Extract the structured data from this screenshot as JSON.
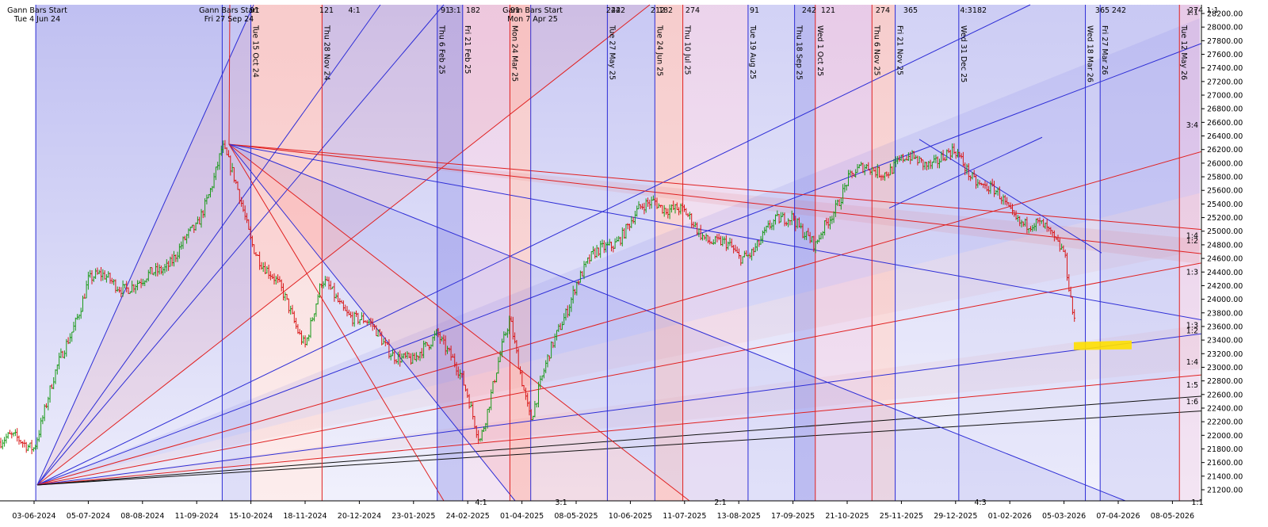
{
  "chart_data": {
    "type": "line",
    "price_axis": {
      "min": 21100,
      "max": 28300,
      "ticks": [
        21200,
        21400,
        21600,
        21800,
        22000,
        22200,
        22400,
        22600,
        22800,
        23000,
        23200,
        23400,
        23600,
        23800,
        24000,
        24200,
        24400,
        24600,
        24800,
        25000,
        25200,
        25400,
        25600,
        25800,
        26000,
        26200,
        26400,
        26600,
        26800,
        27000,
        27200,
        27400,
        27600,
        27800,
        28000,
        28200
      ]
    },
    "date_axis": {
      "labels": [
        "03-06-2024",
        "05-07-2024",
        "08-08-2024",
        "11-09-2024",
        "15-10-2024",
        "18-11-2024",
        "20-12-2024",
        "23-01-2025",
        "24-02-2025",
        "01-04-2025",
        "08-05-2025",
        "10-06-2025",
        "11-07-2025",
        "13-08-2025",
        "17-09-2025",
        "21-10-2025",
        "25-11-2025",
        "29-12-2025",
        "01-02-2026",
        "05-03-2026",
        "07-04-2026",
        "08-05-2026"
      ]
    },
    "gann_starts": [
      {
        "title": "Gann Bars Start",
        "date": "Tue 4 Jun 24"
      },
      {
        "title": "Gann Bars Start",
        "date": "Fri 27 Sep 24"
      },
      {
        "title": "Gann Bars Start",
        "date": "Mon 7 Apr 25"
      }
    ],
    "vertical_lines": [
      {
        "date": "Tue 4 Jun 24",
        "color": "#2d2dd6"
      },
      {
        "date": "Fri 27 Sep 24",
        "color": "#2d2dd6"
      },
      {
        "date": "Tue 15 Oct 24",
        "color": "#2d2dd6"
      },
      {
        "date": "Thu 28 Nov 24",
        "color": "#e02020"
      },
      {
        "date": "Thu 6 Feb 25",
        "color": "#2d2dd6"
      },
      {
        "date": "Fri 21 Feb 25",
        "color": "#2d2dd6"
      },
      {
        "date": "Mon 24 Mar 25",
        "color": "#e02020"
      },
      {
        "date": "Mon 7 Apr 25",
        "color": "#2d2dd6"
      },
      {
        "date": "Tue 27 May 25",
        "color": "#2d2dd6"
      },
      {
        "date": "Tue 24 Jun 25",
        "color": "#2d2dd6"
      },
      {
        "date": "Thu 10 Jul 25",
        "color": "#e02020"
      },
      {
        "date": "Tue 19 Aug 25",
        "color": "#2d2dd6"
      },
      {
        "date": "Thu 18 Sep 25",
        "color": "#2d2dd6"
      },
      {
        "date": "Wed 1 Oct 25",
        "color": "#e02020"
      },
      {
        "date": "Thu 6 Nov 25",
        "color": "#e02020"
      },
      {
        "date": "Fri 21 Nov 25",
        "color": "#2d2dd6"
      },
      {
        "date": "Wed 31 Dec 25",
        "color": "#2d2dd6"
      },
      {
        "date": "Wed 18 Mar 26",
        "color": "#2d2dd6"
      },
      {
        "date": "Fri 27 Mar 26",
        "color": "#2d2dd6"
      },
      {
        "date": "Tue 12 May 26",
        "color": "#e02020"
      }
    ],
    "bar_counts_top": [
      "91",
      "121",
      "4:1",
      "91",
      "3:1",
      "182",
      "91",
      "242",
      "242",
      "212",
      "182",
      "274",
      "91",
      "242",
      "121",
      "274",
      "365",
      "4:3",
      "182",
      "365",
      "242",
      "274",
      "1:1"
    ],
    "bar_counts_bottom": [
      "4:1",
      "3:1",
      "2:1",
      "4:3",
      "1:1"
    ],
    "fan_ratios_right": [
      "1:1",
      "3:4",
      "1:4",
      "1:2",
      "1:3",
      "1:3",
      "1:2",
      "1:4",
      "1:5",
      "1:6"
    ],
    "price_points": [
      [
        "03-06-2024",
        21900
      ],
      [
        "05-07-2024",
        24300
      ],
      [
        "08-08-2024",
        24200
      ],
      [
        "11-09-2024",
        25000
      ],
      [
        "27-09-2024",
        26277
      ],
      [
        "15-10-2024",
        24900
      ],
      [
        "18-11-2024",
        23400
      ],
      [
        "28-11-2024",
        24200
      ],
      [
        "20-12-2024",
        23700
      ],
      [
        "23-01-2025",
        23000
      ],
      [
        "06-02-2025",
        23600
      ],
      [
        "24-02-2025",
        22550
      ],
      [
        "04-03-2025",
        22000
      ],
      [
        "24-03-2025",
        23650
      ],
      [
        "07-04-2025",
        22300
      ],
      [
        "08-05-2025",
        24300
      ],
      [
        "27-05-2025",
        24800
      ],
      [
        "10-06-2025",
        25100
      ],
      [
        "24-06-2025",
        25500
      ],
      [
        "11-07-2025",
        25200
      ],
      [
        "13-08-2025",
        24600
      ],
      [
        "17-09-2025",
        25300
      ],
      [
        "01-10-2025",
        24700
      ],
      [
        "21-10-2025",
        25800
      ],
      [
        "25-11-2025",
        26000
      ],
      [
        "29-12-2025",
        26100
      ],
      [
        "01-02-2026",
        25300
      ],
      [
        "05-03-2026",
        24800
      ],
      [
        "12-03-2026",
        23550
      ]
    ],
    "highlight": {
      "color": "#ffe000",
      "price": 23300
    }
  }
}
